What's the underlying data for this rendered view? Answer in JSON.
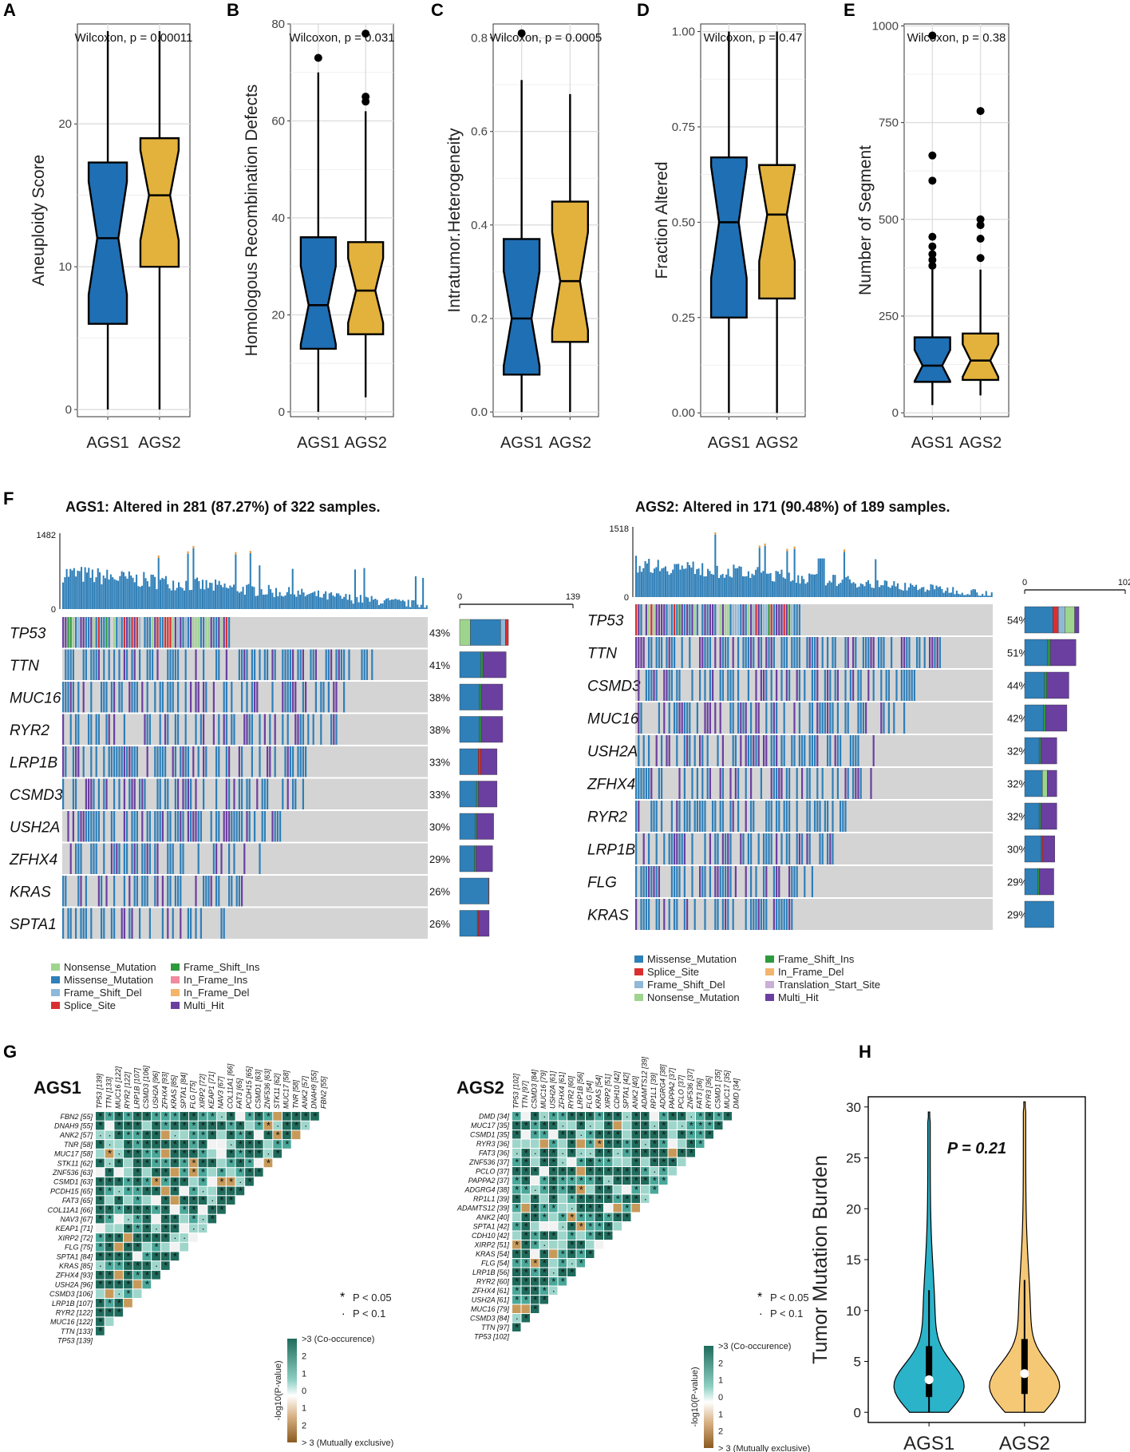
{
  "panels": {
    "A": "A",
    "B": "B",
    "C": "C",
    "D": "D",
    "E": "E",
    "F": "F",
    "G": "G",
    "H": "H"
  },
  "chart_data": [
    {
      "id": "A",
      "type": "box",
      "title": "",
      "ylabel": "Aneuploidy Score",
      "stat": "Wilcoxon, p = 0.00011",
      "ylim": [
        -0.5,
        27
      ],
      "ticks": [
        0,
        10,
        20
      ],
      "categories": [
        "AGS1",
        "AGS2"
      ],
      "boxes": [
        {
          "min": 0,
          "q1": 6,
          "median": 12,
          "q3": 17.3,
          "max": 26.5,
          "outliers": []
        },
        {
          "min": 0,
          "q1": 10,
          "median": 15,
          "q3": 19,
          "max": 26.5,
          "outliers": []
        }
      ],
      "colors": [
        "#1f6fb4",
        "#e3b23c"
      ]
    },
    {
      "id": "B",
      "type": "box",
      "ylabel": "Homologous Recombination Defects",
      "stat": "Wilcoxon, p = 0.031",
      "ylim": [
        -1,
        80
      ],
      "ticks": [
        0,
        20,
        40,
        60,
        80
      ],
      "categories": [
        "AGS1",
        "AGS2"
      ],
      "boxes": [
        {
          "min": 0,
          "q1": 13,
          "median": 22,
          "q3": 36,
          "max": 70,
          "outliers": [
            73
          ]
        },
        {
          "min": 3,
          "q1": 16,
          "median": 25,
          "q3": 35,
          "max": 62,
          "outliers": [
            64,
            65,
            78
          ]
        }
      ],
      "colors": [
        "#1f6fb4",
        "#e3b23c"
      ]
    },
    {
      "id": "C",
      "type": "box",
      "ylabel": "Intratumor.Heterogeneity",
      "stat": "Wilcoxon, p = 0.0005",
      "ylim": [
        -0.01,
        0.83
      ],
      "ticks": [
        0.0,
        0.2,
        0.4,
        0.6,
        0.8
      ],
      "tickLabels": [
        "0.0",
        "0.2",
        "0.4",
        "0.6",
        "0.8"
      ],
      "categories": [
        "AGS1",
        "AGS2"
      ],
      "boxes": [
        {
          "min": 0,
          "q1": 0.08,
          "median": 0.2,
          "q3": 0.37,
          "max": 0.71,
          "outliers": [
            0.81
          ]
        },
        {
          "min": 0,
          "q1": 0.15,
          "median": 0.28,
          "q3": 0.45,
          "max": 0.68,
          "outliers": []
        }
      ],
      "colors": [
        "#1f6fb4",
        "#e3b23c"
      ]
    },
    {
      "id": "D",
      "type": "box",
      "ylabel": "Fraction Altered",
      "stat": "Wilcoxon, p = 0.47",
      "ylim": [
        -0.01,
        1.02
      ],
      "ticks": [
        0,
        0.25,
        0.5,
        0.75,
        1.0
      ],
      "tickLabels": [
        "0.00",
        "0.25",
        "0.50",
        "0.75",
        "1.00"
      ],
      "categories": [
        "AGS1",
        "AGS2"
      ],
      "boxes": [
        {
          "min": 0,
          "q1": 0.25,
          "median": 0.5,
          "q3": 0.67,
          "max": 1.0,
          "outliers": []
        },
        {
          "min": 0,
          "q1": 0.3,
          "median": 0.52,
          "q3": 0.65,
          "max": 1.0,
          "outliers": []
        }
      ],
      "colors": [
        "#1f6fb4",
        "#e3b23c"
      ]
    },
    {
      "id": "E",
      "type": "box",
      "ylabel": "Number of Segment",
      "stat": "Wilcoxon, p = 0.38",
      "ylim": [
        -10,
        1005
      ],
      "ticks": [
        0,
        250,
        500,
        750,
        1000
      ],
      "categories": [
        "AGS1",
        "AGS2"
      ],
      "boxes": [
        {
          "min": 20,
          "q1": 80,
          "median": 122,
          "q3": 195,
          "max": 370,
          "outliers": [
            380,
            395,
            410,
            430,
            455,
            600,
            665,
            975
          ]
        },
        {
          "min": 45,
          "q1": 85,
          "median": 135,
          "q3": 205,
          "max": 370,
          "outliers": [
            400,
            450,
            485,
            500,
            780
          ]
        }
      ],
      "colors": [
        "#1f6fb4",
        "#e3b23c"
      ]
    },
    {
      "id": "F1",
      "type": "oncoplot",
      "title": "AGS1: Altered in 281 (87.27%) of 322 samples.",
      "tmb_max": "1482",
      "bar_max": "139",
      "bar_min": "0",
      "tmb_min": "0",
      "genes": [
        {
          "name": "TP53",
          "pct": "43%",
          "v": 0.43
        },
        {
          "name": "TTN",
          "pct": "41%",
          "v": 0.41
        },
        {
          "name": "MUC16",
          "pct": "38%",
          "v": 0.38
        },
        {
          "name": "RYR2",
          "pct": "38%",
          "v": 0.38
        },
        {
          "name": "LRP1B",
          "pct": "33%",
          "v": 0.33
        },
        {
          "name": "CSMD3",
          "pct": "33%",
          "v": 0.33
        },
        {
          "name": "USH2A",
          "pct": "30%",
          "v": 0.3
        },
        {
          "name": "ZFHX4",
          "pct": "29%",
          "v": 0.29
        },
        {
          "name": "KRAS",
          "pct": "26%",
          "v": 0.26
        },
        {
          "name": "SPTA1",
          "pct": "26%",
          "v": 0.26
        }
      ],
      "legend": [
        "Nonsense_Mutation",
        "Missense_Mutation",
        "Frame_Shift_Del",
        "Splice_Site",
        "Frame_Shift_Ins",
        "In_Frame_Ins",
        "In_Frame_Del",
        "Multi_Hit"
      ]
    },
    {
      "id": "F2",
      "type": "oncoplot",
      "title": "AGS2: Altered in 171 (90.48%) of 189 samples.",
      "tmb_max": "1518",
      "bar_max": "102",
      "bar_min": "0",
      "tmb_min": "0",
      "genes": [
        {
          "name": "TP53",
          "pct": "54%",
          "v": 0.54
        },
        {
          "name": "TTN",
          "pct": "51%",
          "v": 0.51
        },
        {
          "name": "CSMD3",
          "pct": "44%",
          "v": 0.44
        },
        {
          "name": "MUC16",
          "pct": "42%",
          "v": 0.42
        },
        {
          "name": "USH2A",
          "pct": "32%",
          "v": 0.32
        },
        {
          "name": "ZFHX4",
          "pct": "32%",
          "v": 0.32
        },
        {
          "name": "RYR2",
          "pct": "32%",
          "v": 0.32
        },
        {
          "name": "LRP1B",
          "pct": "30%",
          "v": 0.3
        },
        {
          "name": "FLG",
          "pct": "29%",
          "v": 0.29
        },
        {
          "name": "KRAS",
          "pct": "29%",
          "v": 0.29
        }
      ],
      "legend": [
        "Missense_Mutation",
        "Splice_Site",
        "Frame_Shift_Del",
        "Nonsense_Mutation",
        "Frame_Shift_Ins",
        "In_Frame_Del",
        "Translation_Start_Site",
        "Multi_Hit"
      ]
    },
    {
      "id": "G1",
      "type": "heatmap",
      "title": "AGS1",
      "genes": [
        "TP53 [139]",
        "TTN [133]",
        "MUC16 [122]",
        "RYR2 [122]",
        "LRP1B [107]",
        "CSMD3 [106]",
        "USH2A [96]",
        "ZFHX4 [93]",
        "KRAS [85]",
        "SPTA1 [84]",
        "FLG [75]",
        "XIRP2 [72]",
        "KEAP1 [71]",
        "NAV3 [67]",
        "COL11A1 [66]",
        "FAT3 [65]",
        "PCDH15 [65]",
        "CSMD1 [63]",
        "ZNF536 [63]",
        "STK11 [62]",
        "MUC17 [58]",
        "TNR [58]",
        "ANK2 [57]",
        "DNAH9 [55]",
        "FBN2 [55]"
      ],
      "legend_sig": [
        "P < 0.05",
        "P < 0.1"
      ],
      "scale": [
        ">3 (Co-occurence)",
        "2",
        "1",
        "0",
        "1",
        "2",
        "> 3 (Mutually exclusive)"
      ],
      "scale_label": "-log10(P-value)"
    },
    {
      "id": "G2",
      "type": "heatmap",
      "title": "AGS2",
      "genes": [
        "TP53 [102]",
        "TTN [97]",
        "CSMD3 [84]",
        "MUC16 [79]",
        "USH2A [61]",
        "ZFHX4 [61]",
        "RYR2 [60]",
        "LRP1B [56]",
        "FLG [54]",
        "KRAS [54]",
        "XIRP2 [51]",
        "CDH10 [42]",
        "SPTA1 [42]",
        "ANK2 [40]",
        "ADAMTS12 [39]",
        "RP1L1 [39]",
        "ADGRG4 [38]",
        "PAPPA2 [37]",
        "PCLO [37]",
        "ZNF536 [37]",
        "FAT3 [36]",
        "RYR3 [36]",
        "CSMD1 [35]",
        "MUC17 [35]",
        "DMD [34]"
      ],
      "legend_sig": [
        "P < 0.05",
        "P < 0.1"
      ],
      "scale": [
        ">3 (Co-occurence)",
        "2",
        "1",
        "0",
        "1",
        "2",
        "> 3 (Mutually exclusive)"
      ],
      "scale_label": "-log10(P-value)"
    },
    {
      "id": "H",
      "type": "violin",
      "ylabel": "Tumor Mutation Burden",
      "stat": "P = 0.21",
      "ylim": [
        -1,
        31
      ],
      "ticks": [
        0,
        5,
        10,
        15,
        20,
        25,
        30
      ],
      "categories": [
        "AGS1",
        "AGS2"
      ],
      "groups": [
        {
          "max": 29.5,
          "q1": 1.5,
          "median": 3.2,
          "q3": 6.5,
          "whisker_hi": 12
        },
        {
          "max": 30.5,
          "q1": 1.8,
          "median": 3.8,
          "q3": 7.2,
          "whisker_hi": 13
        }
      ],
      "colors": [
        "#2bb3c9",
        "#f5c876"
      ]
    }
  ]
}
